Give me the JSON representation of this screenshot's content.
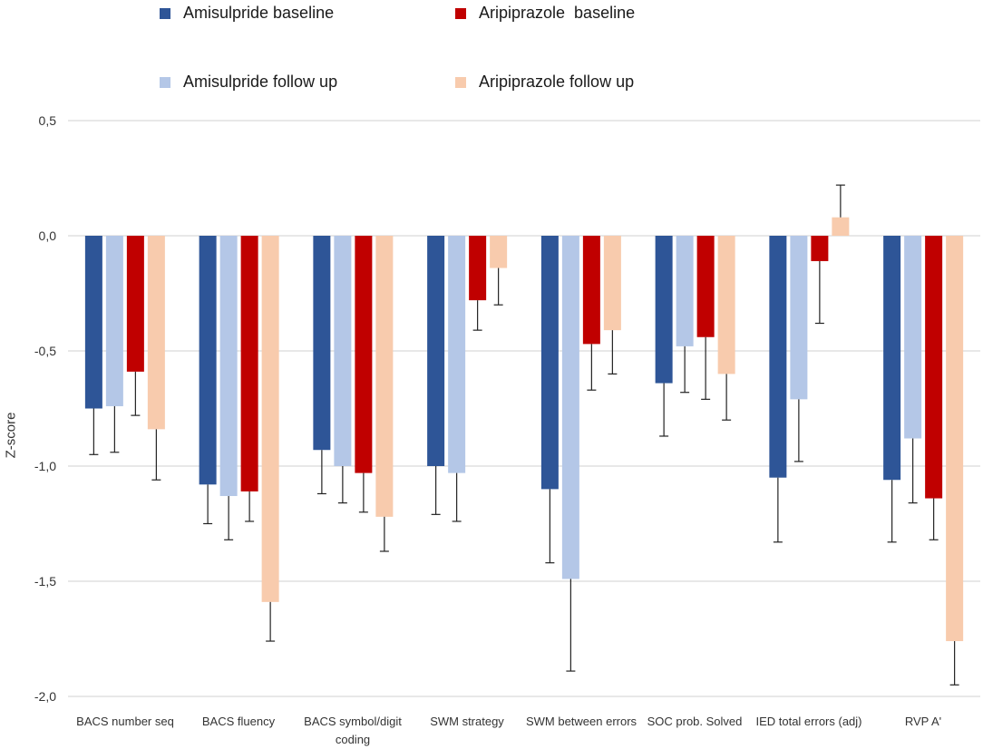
{
  "chart_data": {
    "type": "bar",
    "title": "",
    "xlabel": "",
    "ylabel": "Z-score",
    "ylim": [
      -2.0,
      0.5
    ],
    "yticks": [
      0.5,
      0.0,
      -0.5,
      -1.0,
      -1.5,
      -2.0
    ],
    "ytick_labels": [
      "0,5",
      "0,0",
      "-0,5",
      "-1,0",
      "-1,5",
      "-2,0"
    ],
    "grid": true,
    "legend_position": "top",
    "categories": [
      "BACS number seq",
      "BACS fluency",
      "BACS symbol/digit coding",
      "SWM strategy",
      "SWM between errors",
      "SOC prob. Solved",
      "IED total errors (adj)",
      "RVP A'"
    ],
    "series": [
      {
        "name": "Amisulpride baseline",
        "color": "#2e5597",
        "values": [
          -0.75,
          -1.08,
          -0.93,
          -1.0,
          -1.1,
          -0.64,
          -1.05,
          -1.06
        ],
        "error": [
          0.2,
          0.17,
          0.19,
          0.21,
          0.32,
          0.23,
          0.28,
          0.27
        ]
      },
      {
        "name": "Amisulpride follow up",
        "color": "#b4c7e7",
        "values": [
          -0.74,
          -1.13,
          -1.0,
          -1.03,
          -1.49,
          -0.48,
          -0.71,
          -0.88
        ],
        "error": [
          0.2,
          0.19,
          0.16,
          0.21,
          0.4,
          0.2,
          0.27,
          0.28
        ]
      },
      {
        "name": "Aripiprazole  baseline",
        "color": "#c00000",
        "values": [
          -0.59,
          -1.11,
          -1.03,
          -0.28,
          -0.47,
          -0.44,
          -0.11,
          -1.14
        ],
        "error": [
          0.19,
          0.13,
          0.17,
          0.13,
          0.2,
          0.27,
          0.27,
          0.18
        ]
      },
      {
        "name": "Aripiprazole follow up",
        "color": "#f8cbad",
        "values": [
          -0.84,
          -1.59,
          -1.22,
          -0.14,
          -0.41,
          -0.6,
          0.08,
          -1.76
        ],
        "error": [
          0.22,
          0.17,
          0.15,
          0.16,
          0.19,
          0.2,
          0.14,
          0.19
        ]
      }
    ]
  }
}
